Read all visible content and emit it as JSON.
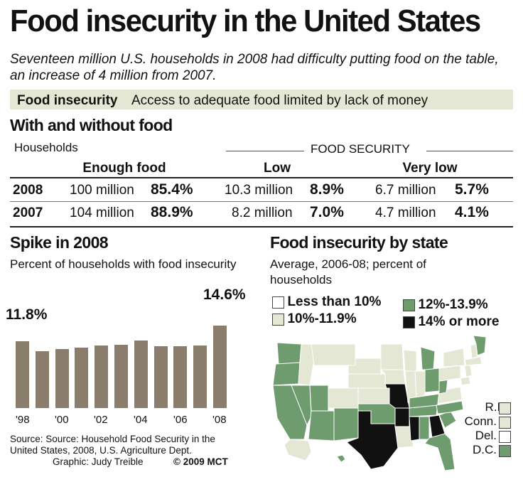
{
  "title": "Food insecurity in the United States",
  "subtitle": "Seventeen million U.S. households in 2008 had difficulty putting food on the table, an increase of 4 million from 2007.",
  "definition": {
    "term": "Food insecurity",
    "text": "Access to adequate food limited by lack of money"
  },
  "table": {
    "title": "With and without food",
    "households_label": "Households",
    "group_label": "FOOD SECURITY",
    "columns": [
      "Enough food",
      "Low",
      "Very low"
    ],
    "rows": [
      {
        "year": "2008",
        "enough_num": "100 million",
        "enough_pct": "85.4%",
        "low_num": "10.3 million",
        "low_pct": "8.9%",
        "verylow_num": "6.7 million",
        "verylow_pct": "5.7%"
      },
      {
        "year": "2007",
        "enough_num": "104 million",
        "enough_pct": "88.9%",
        "low_num": "8.2 million",
        "low_pct": "7.0%",
        "verylow_num": "4.7 million",
        "verylow_pct": "4.1%"
      }
    ]
  },
  "chart_data": {
    "type": "bar",
    "title": "Spike in 2008",
    "subtitle": "Percent of households with food insecurity",
    "categories": [
      "1998",
      "1999",
      "2000",
      "2001",
      "2002",
      "2003",
      "2004",
      "2005",
      "2006",
      "2007",
      "2008"
    ],
    "tick_labels": [
      "'98",
      "'00",
      "'02",
      "'04",
      "'06",
      "'08"
    ],
    "values": [
      11.8,
      10.1,
      10.5,
      10.7,
      11.1,
      11.2,
      11.9,
      11.0,
      10.9,
      11.1,
      14.6
    ],
    "data_labels": {
      "first": "11.8%",
      "last": "14.6%"
    },
    "ylim": [
      0,
      16
    ],
    "color": "#8a7d6b"
  },
  "map": {
    "title": "Food insecurity by state",
    "subtitle": "Average, 2006-08; percent of households",
    "legend": [
      {
        "label": "Less than 10%",
        "color": "#ffffff"
      },
      {
        "label": "10%-11.9%",
        "color": "#e3e7d3"
      },
      {
        "label": "12%-13.9%",
        "color": "#6e9c6e"
      },
      {
        "label": "14% or more",
        "color": "#111111"
      }
    ],
    "small_states": [
      {
        "label": "R.I.",
        "color": "#e3e7d3"
      },
      {
        "label": "Conn.",
        "color": "#e3e7d3"
      },
      {
        "label": "Del.",
        "color": "#ffffff"
      },
      {
        "label": "D.C.",
        "color": "#6e9c6e"
      }
    ]
  },
  "source": "Source: Source: Household Food Security in the United States, 2008, U.S. Agriculture Dept.",
  "graphic": "Graphic: Judy Treible",
  "copyright": "© 2009 MCT"
}
